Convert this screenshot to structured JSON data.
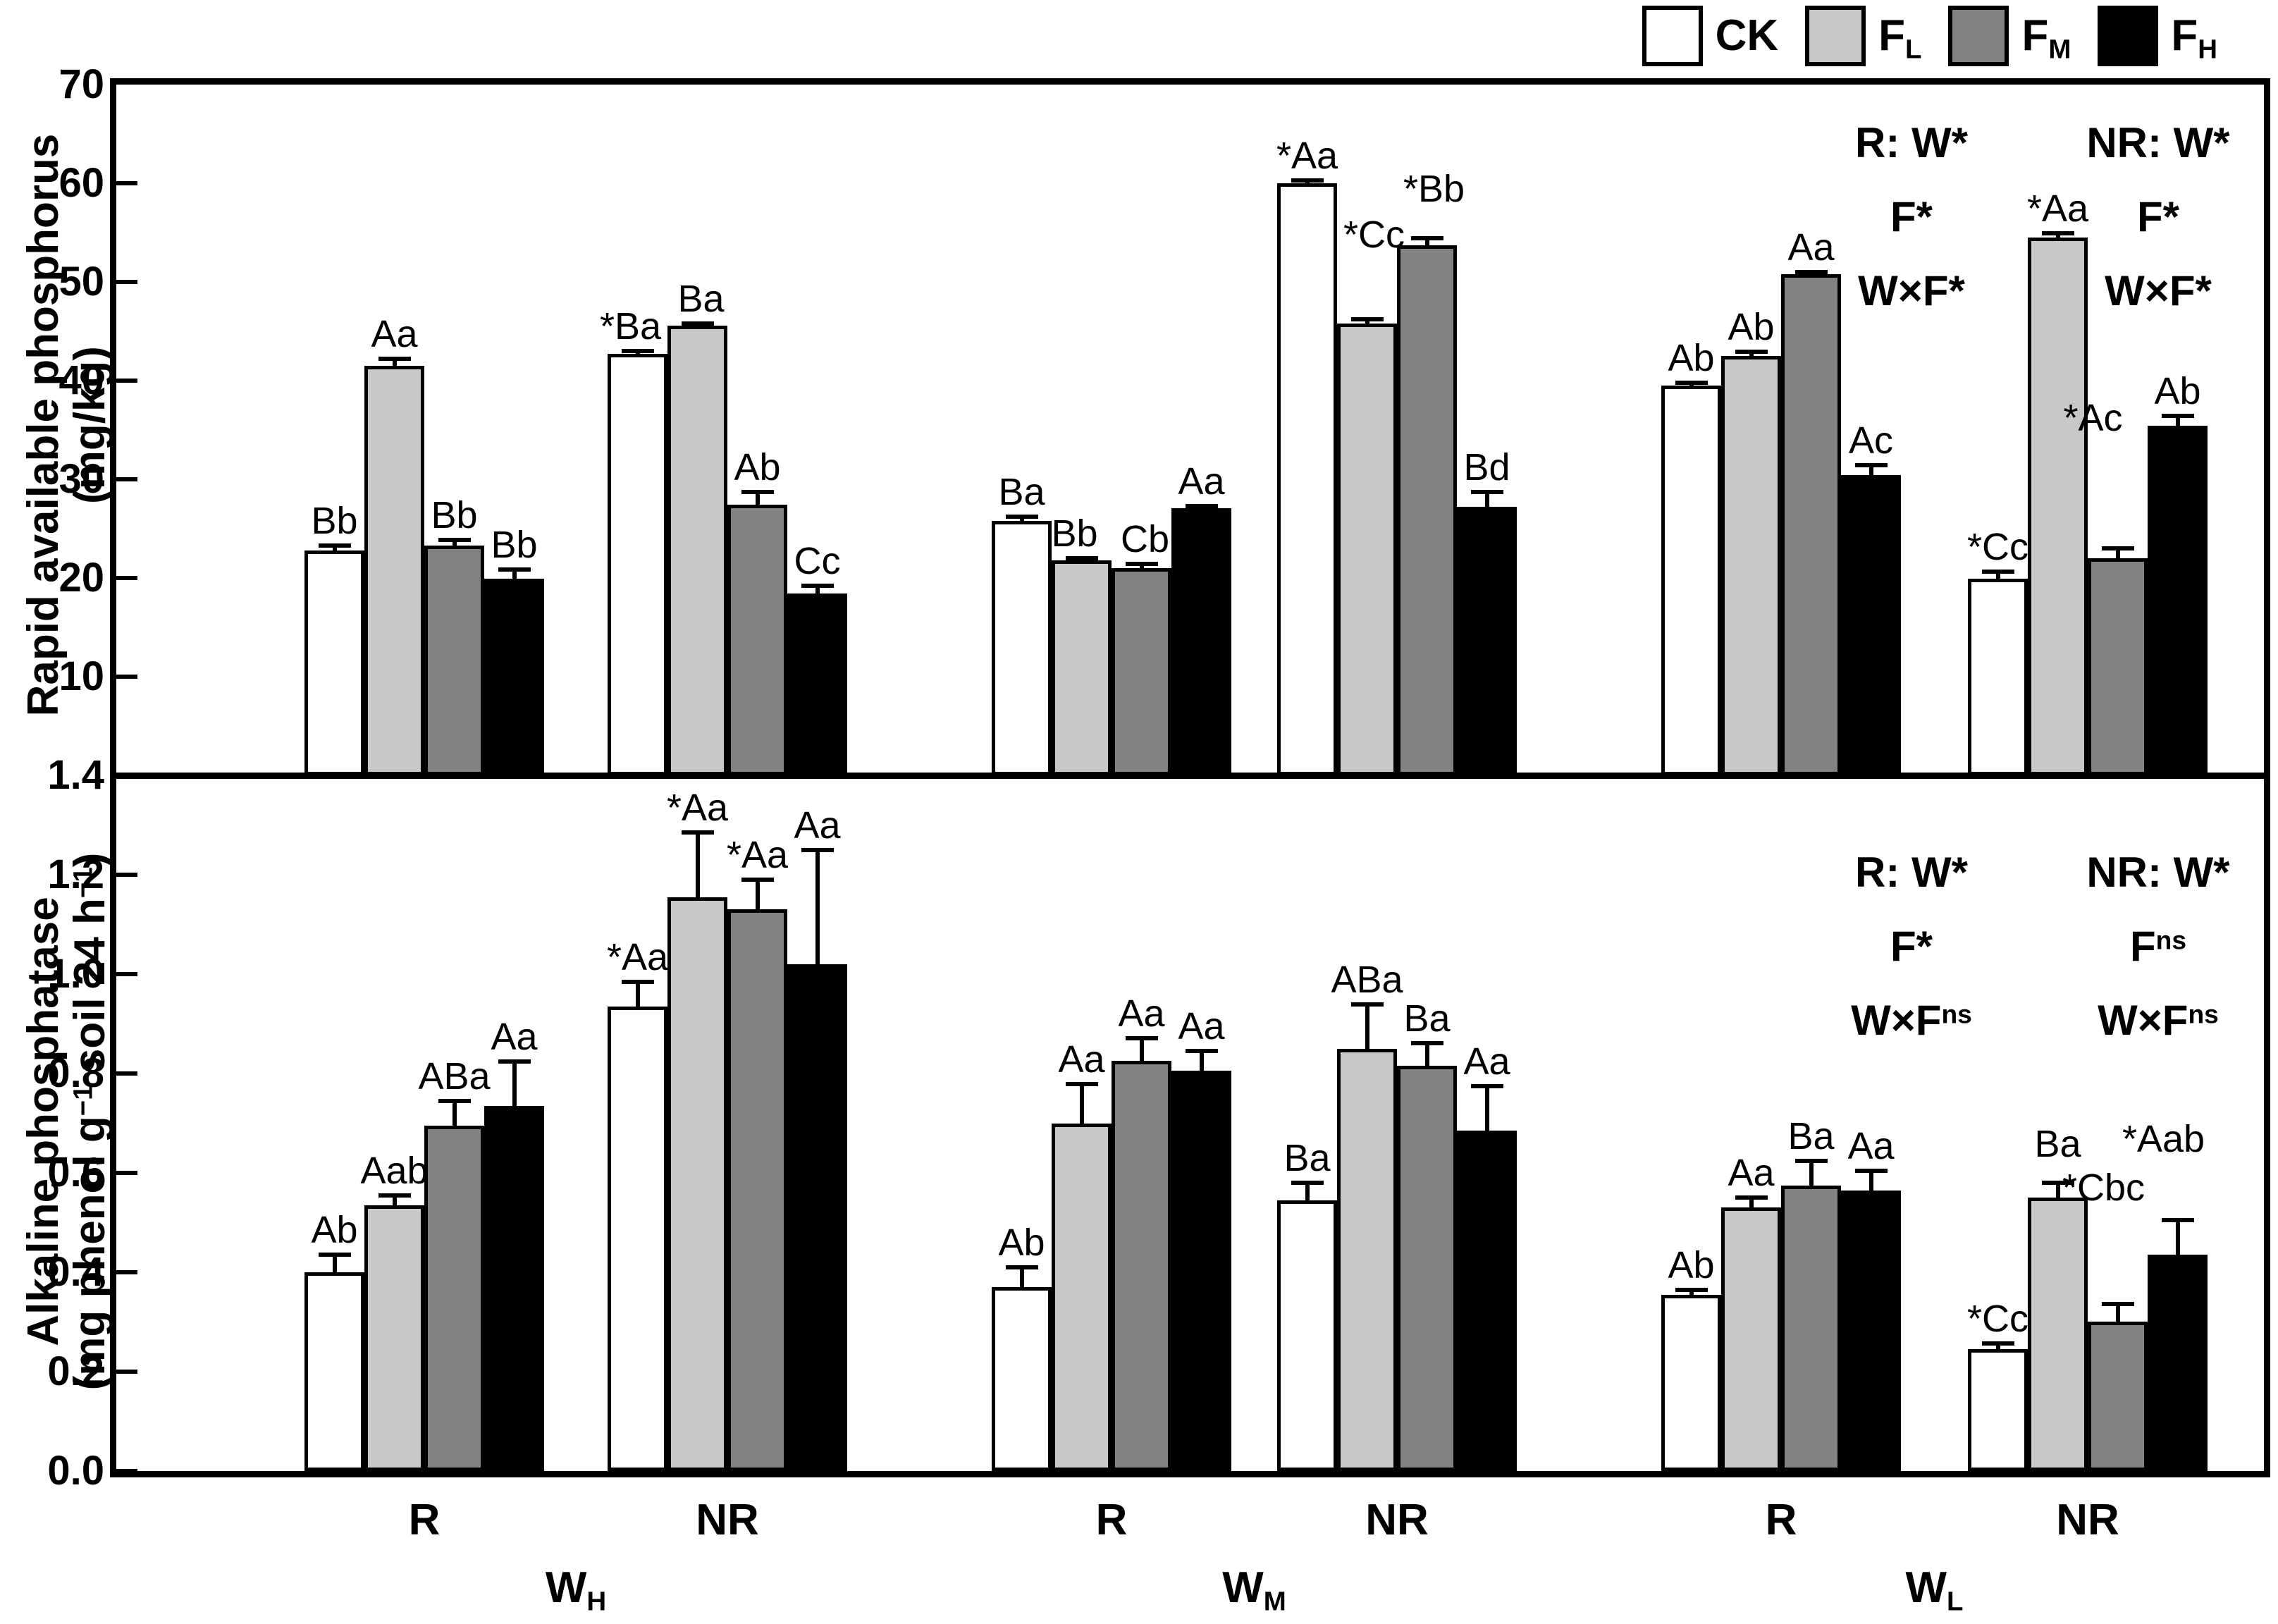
{
  "legend": {
    "items": [
      {
        "key": "CK",
        "label": [
          {
            "t": "CK"
          }
        ],
        "color": "#ffffff"
      },
      {
        "key": "FL",
        "label": [
          {
            "t": "F"
          },
          {
            "sub": "L"
          }
        ],
        "color": "#c8c8c8"
      },
      {
        "key": "FM",
        "label": [
          {
            "t": "F"
          },
          {
            "sub": "M"
          }
        ],
        "color": "#828282"
      },
      {
        "key": "FH",
        "label": [
          {
            "t": "F"
          },
          {
            "sub": "H"
          }
        ],
        "color": "#000000"
      }
    ]
  },
  "x_axis": {
    "irrigation_labels": [
      "R",
      "NR",
      "R",
      "NR",
      "R",
      "NR"
    ],
    "water_labels": [
      [
        {
          "t": "W"
        },
        {
          "sub": "H"
        }
      ],
      [
        {
          "t": "W"
        },
        {
          "sub": "M"
        }
      ],
      [
        {
          "t": "W"
        },
        {
          "sub": "L"
        }
      ]
    ]
  },
  "chart_data": [
    {
      "id": "top",
      "type": "bar",
      "ylabel_lines": [
        [
          {
            "t": "Rapid available phosphorus"
          }
        ],
        [
          {
            "t": "(mg/kg)"
          }
        ]
      ],
      "ylim": [
        0,
        70
      ],
      "yticks": [
        10,
        20,
        30,
        40,
        50,
        60,
        70
      ],
      "ytick_decimals": 0,
      "grid": false,
      "anova_blocks": [
        {
          "lines": [
            [
              {
                "t": "R: W*"
              }
            ],
            [
              {
                "t": "F*"
              }
            ],
            [
              {
                "t": "W×F*"
              }
            ]
          ]
        },
        {
          "lines": [
            [
              {
                "t": "NR: W*"
              }
            ],
            [
              {
                "t": "F*"
              }
            ],
            [
              {
                "t": "W×F*"
              }
            ]
          ]
        }
      ],
      "groups": [
        {
          "water": "WH",
          "irrigation": "R",
          "bars": [
            {
              "treatment": "CK",
              "value": 22.8,
              "err": 0.5,
              "label": "Bb",
              "dx": 0,
              "dy": 0
            },
            {
              "treatment": "FL",
              "value": 41.5,
              "err": 0.7,
              "label": "Aa",
              "dx": 0,
              "dy": 0
            },
            {
              "treatment": "FM",
              "value": 23.3,
              "err": 0.6,
              "label": "Bb",
              "dx": 0,
              "dy": 0
            },
            {
              "treatment": "FH",
              "value": 19.9,
              "err": 0.9,
              "label": "Bb",
              "dx": 0,
              "dy": 0
            }
          ]
        },
        {
          "water": "WH",
          "irrigation": "NR",
          "bars": [
            {
              "treatment": "CK",
              "value": 42.7,
              "err": 0.3,
              "label": "*Ba",
              "dx": -10,
              "dy": 0
            },
            {
              "treatment": "FL",
              "value": 45.6,
              "err": 0.2,
              "label": "Ba",
              "dx": 5,
              "dy": 0
            },
            {
              "treatment": "FM",
              "value": 27.4,
              "err": 1.3,
              "label": "Ab",
              "dx": 0,
              "dy": 0
            },
            {
              "treatment": "FH",
              "value": 18.4,
              "err": 0.8,
              "label": "Cc",
              "dx": 0,
              "dy": 0
            }
          ]
        },
        {
          "water": "WM",
          "irrigation": "R",
          "bars": [
            {
              "treatment": "CK",
              "value": 25.8,
              "err": 0.4,
              "label": "Ba",
              "dx": 0,
              "dy": 0
            },
            {
              "treatment": "FL",
              "value": 21.8,
              "err": 0.2,
              "label": "Bb",
              "dx": -10,
              "dy": 0
            },
            {
              "treatment": "FM",
              "value": 21.0,
              "err": 0.4,
              "label": "Cb",
              "dx": 5,
              "dy": 0
            },
            {
              "treatment": "FH",
              "value": 27.1,
              "err": 0.2,
              "label": "Aa",
              "dx": 0,
              "dy": 0
            }
          ]
        },
        {
          "water": "WM",
          "irrigation": "NR",
          "bars": [
            {
              "treatment": "CK",
              "value": 60.0,
              "err": 0.3,
              "label": "*Aa",
              "dx": 0,
              "dy": 0
            },
            {
              "treatment": "FL",
              "value": 45.8,
              "err": 0.4,
              "label": "*Cc",
              "dx": 10,
              "dy": -85
            },
            {
              "treatment": "FM",
              "value": 53.7,
              "err": 0.7,
              "label": "*Bb",
              "dx": 10,
              "dy": -35
            },
            {
              "treatment": "FH",
              "value": 27.2,
              "err": 1.5,
              "label": "Bd",
              "dx": 0,
              "dy": 0
            }
          ]
        },
        {
          "water": "WL",
          "irrigation": "R",
          "bars": [
            {
              "treatment": "CK",
              "value": 39.5,
              "err": 0.3,
              "label": "Ab",
              "dx": 0,
              "dy": 0
            },
            {
              "treatment": "FL",
              "value": 42.5,
              "err": 0.4,
              "label": "Ab",
              "dx": 0,
              "dy": 0
            },
            {
              "treatment": "FM",
              "value": 50.8,
              "err": 0.2,
              "label": "Aa",
              "dx": 0,
              "dy": 0
            },
            {
              "treatment": "FH",
              "value": 30.4,
              "err": 1.0,
              "label": "Ac",
              "dx": 0,
              "dy": 0
            }
          ]
        },
        {
          "water": "WL",
          "irrigation": "NR",
          "bars": [
            {
              "treatment": "CK",
              "value": 19.9,
              "err": 0.7,
              "label": "*Cc",
              "dx": 0,
              "dy": 0
            },
            {
              "treatment": "FL",
              "value": 54.5,
              "err": 0.4,
              "label": "*Aa",
              "dx": 0,
              "dy": 0
            },
            {
              "treatment": "FM",
              "value": 22.0,
              "err": 1.0,
              "label": "*Ac",
              "dx": -35,
              "dy": -150
            },
            {
              "treatment": "FH",
              "value": 35.4,
              "err": 1.0,
              "label": "Ab",
              "dx": 0,
              "dy": 0
            }
          ]
        }
      ]
    },
    {
      "id": "bottom",
      "type": "bar",
      "ylabel_lines": [
        [
          {
            "t": "Alkaline phosphatase"
          }
        ],
        [
          {
            "t": "(mg phenol g"
          },
          {
            "sup": "−1"
          },
          {
            "t": " soil 24 h"
          },
          {
            "sup": "−1"
          },
          {
            "t": ")"
          }
        ]
      ],
      "ylim": [
        0,
        1.4
      ],
      "yticks": [
        0.0,
        0.2,
        0.4,
        0.6,
        0.8,
        1.0,
        1.2,
        1.4
      ],
      "ytick_decimals": 1,
      "grid": false,
      "anova_blocks": [
        {
          "lines": [
            [
              {
                "t": "R: W*"
              }
            ],
            [
              {
                "t": "F*"
              }
            ],
            [
              {
                "t": "W×F"
              },
              {
                "sup": "ns"
              }
            ]
          ]
        },
        {
          "lines": [
            [
              {
                "t": "NR: W*"
              }
            ],
            [
              {
                "t": "F"
              },
              {
                "sup": "ns"
              }
            ],
            [
              {
                "t": "W×F"
              },
              {
                "sup": "ns"
              }
            ]
          ]
        }
      ],
      "groups": [
        {
          "water": "WH",
          "irrigation": "R",
          "bars": [
            {
              "treatment": "CK",
              "value": 0.4,
              "err": 0.035,
              "label": "Ab",
              "dx": 0,
              "dy": 0
            },
            {
              "treatment": "FL",
              "value": 0.535,
              "err": 0.02,
              "label": "Aab",
              "dx": 0,
              "dy": 0
            },
            {
              "treatment": "FM",
              "value": 0.695,
              "err": 0.05,
              "label": "ABa",
              "dx": 0,
              "dy": 0
            },
            {
              "treatment": "FH",
              "value": 0.735,
              "err": 0.09,
              "label": "Aa",
              "dx": 0,
              "dy": 0
            }
          ]
        },
        {
          "water": "WH",
          "irrigation": "NR",
          "bars": [
            {
              "treatment": "CK",
              "value": 0.935,
              "err": 0.05,
              "label": "*Aa",
              "dx": 0,
              "dy": 0
            },
            {
              "treatment": "FL",
              "value": 1.155,
              "err": 0.13,
              "label": "*Aa",
              "dx": 0,
              "dy": 0
            },
            {
              "treatment": "FM",
              "value": 1.13,
              "err": 0.06,
              "label": "*Aa",
              "dx": 0,
              "dy": 0
            },
            {
              "treatment": "FH",
              "value": 1.02,
              "err": 0.23,
              "label": "Aa",
              "dx": 0,
              "dy": 0
            }
          ]
        },
        {
          "water": "WM",
          "irrigation": "R",
          "bars": [
            {
              "treatment": "CK",
              "value": 0.37,
              "err": 0.04,
              "label": "Ab",
              "dx": 0,
              "dy": 0
            },
            {
              "treatment": "FL",
              "value": 0.7,
              "err": 0.08,
              "label": "Aa",
              "dx": 0,
              "dy": 0
            },
            {
              "treatment": "FM",
              "value": 0.825,
              "err": 0.045,
              "label": "Aa",
              "dx": 0,
              "dy": 0
            },
            {
              "treatment": "FH",
              "value": 0.805,
              "err": 0.04,
              "label": "Aa",
              "dx": 0,
              "dy": 0
            }
          ]
        },
        {
          "water": "WM",
          "irrigation": "NR",
          "bars": [
            {
              "treatment": "CK",
              "value": 0.545,
              "err": 0.035,
              "label": "Ba",
              "dx": 0,
              "dy": 0
            },
            {
              "treatment": "FL",
              "value": 0.85,
              "err": 0.09,
              "label": "ABa",
              "dx": 0,
              "dy": 0
            },
            {
              "treatment": "FM",
              "value": 0.815,
              "err": 0.045,
              "label": "Ba",
              "dx": 0,
              "dy": 0
            },
            {
              "treatment": "FH",
              "value": 0.685,
              "err": 0.09,
              "label": "Aa",
              "dx": 0,
              "dy": 0
            }
          ]
        },
        {
          "water": "WL",
          "irrigation": "R",
          "bars": [
            {
              "treatment": "CK",
              "value": 0.355,
              "err": 0.01,
              "label": "Ab",
              "dx": 0,
              "dy": 0
            },
            {
              "treatment": "FL",
              "value": 0.53,
              "err": 0.02,
              "label": "Aa",
              "dx": 0,
              "dy": 0
            },
            {
              "treatment": "FM",
              "value": 0.575,
              "err": 0.05,
              "label": "Ba",
              "dx": 0,
              "dy": 0
            },
            {
              "treatment": "FH",
              "value": 0.565,
              "err": 0.04,
              "label": "Aa",
              "dx": 0,
              "dy": 0
            }
          ]
        },
        {
          "water": "WL",
          "irrigation": "NR",
          "bars": [
            {
              "treatment": "CK",
              "value": 0.245,
              "err": 0.012,
              "label": "*Cc",
              "dx": 0,
              "dy": 0
            },
            {
              "treatment": "FL",
              "value": 0.55,
              "err": 0.03,
              "label": "Ba",
              "dx": 0,
              "dy": -20
            },
            {
              "treatment": "FM",
              "value": 0.3,
              "err": 0.035,
              "label": "*Cbc",
              "dx": -20,
              "dy": -130
            },
            {
              "treatment": "FH",
              "value": 0.435,
              "err": 0.07,
              "label": "*Aab",
              "dx": -20,
              "dy": -80
            }
          ]
        }
      ]
    }
  ]
}
